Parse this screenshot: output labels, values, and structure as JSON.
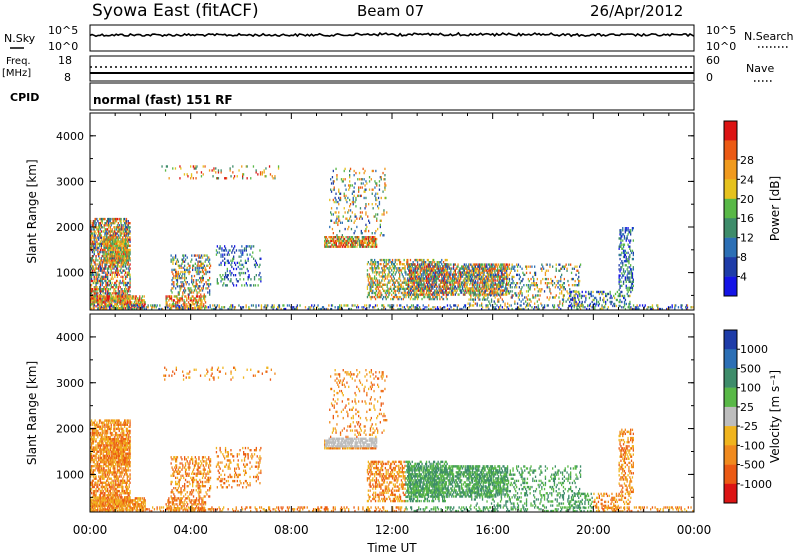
{
  "header": {
    "station": "Syowa East (fitACF)",
    "beam": "Beam 07",
    "date": "26/Apr/2012"
  },
  "nsky_panel": {
    "left_label": "N.Sky",
    "right_label": "N.Search",
    "left_ticks": [
      "10^5",
      "10^0"
    ],
    "right_ticks": [
      "10^5",
      "10^0"
    ]
  },
  "freq_panel": {
    "left_label_1": "Freq.",
    "left_label_2": "[MHz]",
    "right_label": "Nave",
    "left_ticks": [
      "18",
      "8"
    ],
    "right_ticks": [
      "60",
      "0"
    ]
  },
  "cpid_panel": {
    "label": "CPID",
    "program": "normal (fast) 151 RF"
  },
  "chart_data": [
    {
      "type": "heatmap",
      "variable": "Power",
      "ylabel": "Slant Range [km]",
      "ylim": [
        180,
        4500
      ],
      "yticks": [
        "1000",
        "2000",
        "3000",
        "4000"
      ],
      "xlim": [
        0,
        24
      ],
      "colorbar_label": "Power [dB]",
      "colorbar_ticks": [
        "4",
        "8",
        "12",
        "16",
        "20",
        "24",
        "28"
      ],
      "colorbar_colors": [
        "#1414e6",
        "#1e3ca8",
        "#2c6fb5",
        "#3e8c6a",
        "#59b847",
        "#e6c21e",
        "#f09a1e",
        "#eb5a14",
        "#dc1414"
      ]
    },
    {
      "type": "heatmap",
      "variable": "Velocity",
      "ylabel": "Slant Range [km]",
      "ylim": [
        180,
        4500
      ],
      "yticks": [
        "1000",
        "2000",
        "3000",
        "4000"
      ],
      "xlim": [
        0,
        24
      ],
      "colorbar_label": "Velocity [m s⁻¹]",
      "colorbar_ticks": [
        "1000",
        "500",
        "100",
        "25",
        "-25",
        "-100",
        "-500",
        "-1000"
      ],
      "colorbar_colors": [
        "#1e3ca8",
        "#2c6fb5",
        "#3e8c6a",
        "#59b847",
        "#bdbdbd",
        "#f0b41e",
        "#f08a1e",
        "#eb5a14",
        "#dc1414"
      ]
    }
  ],
  "x_axis": {
    "xlabel": "Time UT",
    "ticks": [
      "00:00",
      "04:00",
      "08:00",
      "12:00",
      "16:00",
      "20:00",
      "00:00"
    ]
  }
}
